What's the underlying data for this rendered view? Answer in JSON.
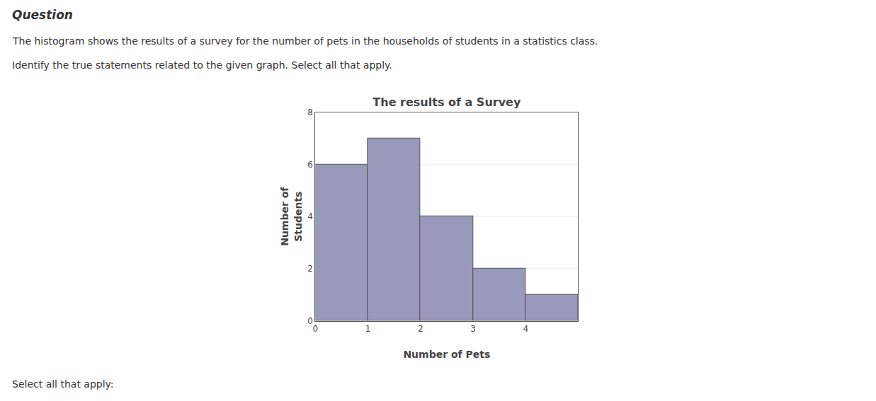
{
  "chart_data": {
    "type": "histogram",
    "title": "The results of a Survey",
    "xlabel": "Number of Pets",
    "ylabel": "Number of\nStudents",
    "bins": [
      0,
      1,
      2,
      3,
      4,
      5
    ],
    "values": [
      6,
      7,
      4,
      2,
      1
    ],
    "color": "#9999bb",
    "xlim": [
      0,
      5
    ],
    "xticks": [
      0,
      1,
      2,
      3,
      4
    ],
    "ylim": [
      0,
      8
    ],
    "yticks": [
      0,
      2,
      4,
      6,
      8
    ],
    "grid": true,
    "annotations": [
      "Question",
      "The histogram shows the results of a survey for the number of pets in the households of students in a statistics class.",
      "Identify the true statements related to the given graph. Select all that apply.",
      "Select all that apply:"
    ]
  }
}
